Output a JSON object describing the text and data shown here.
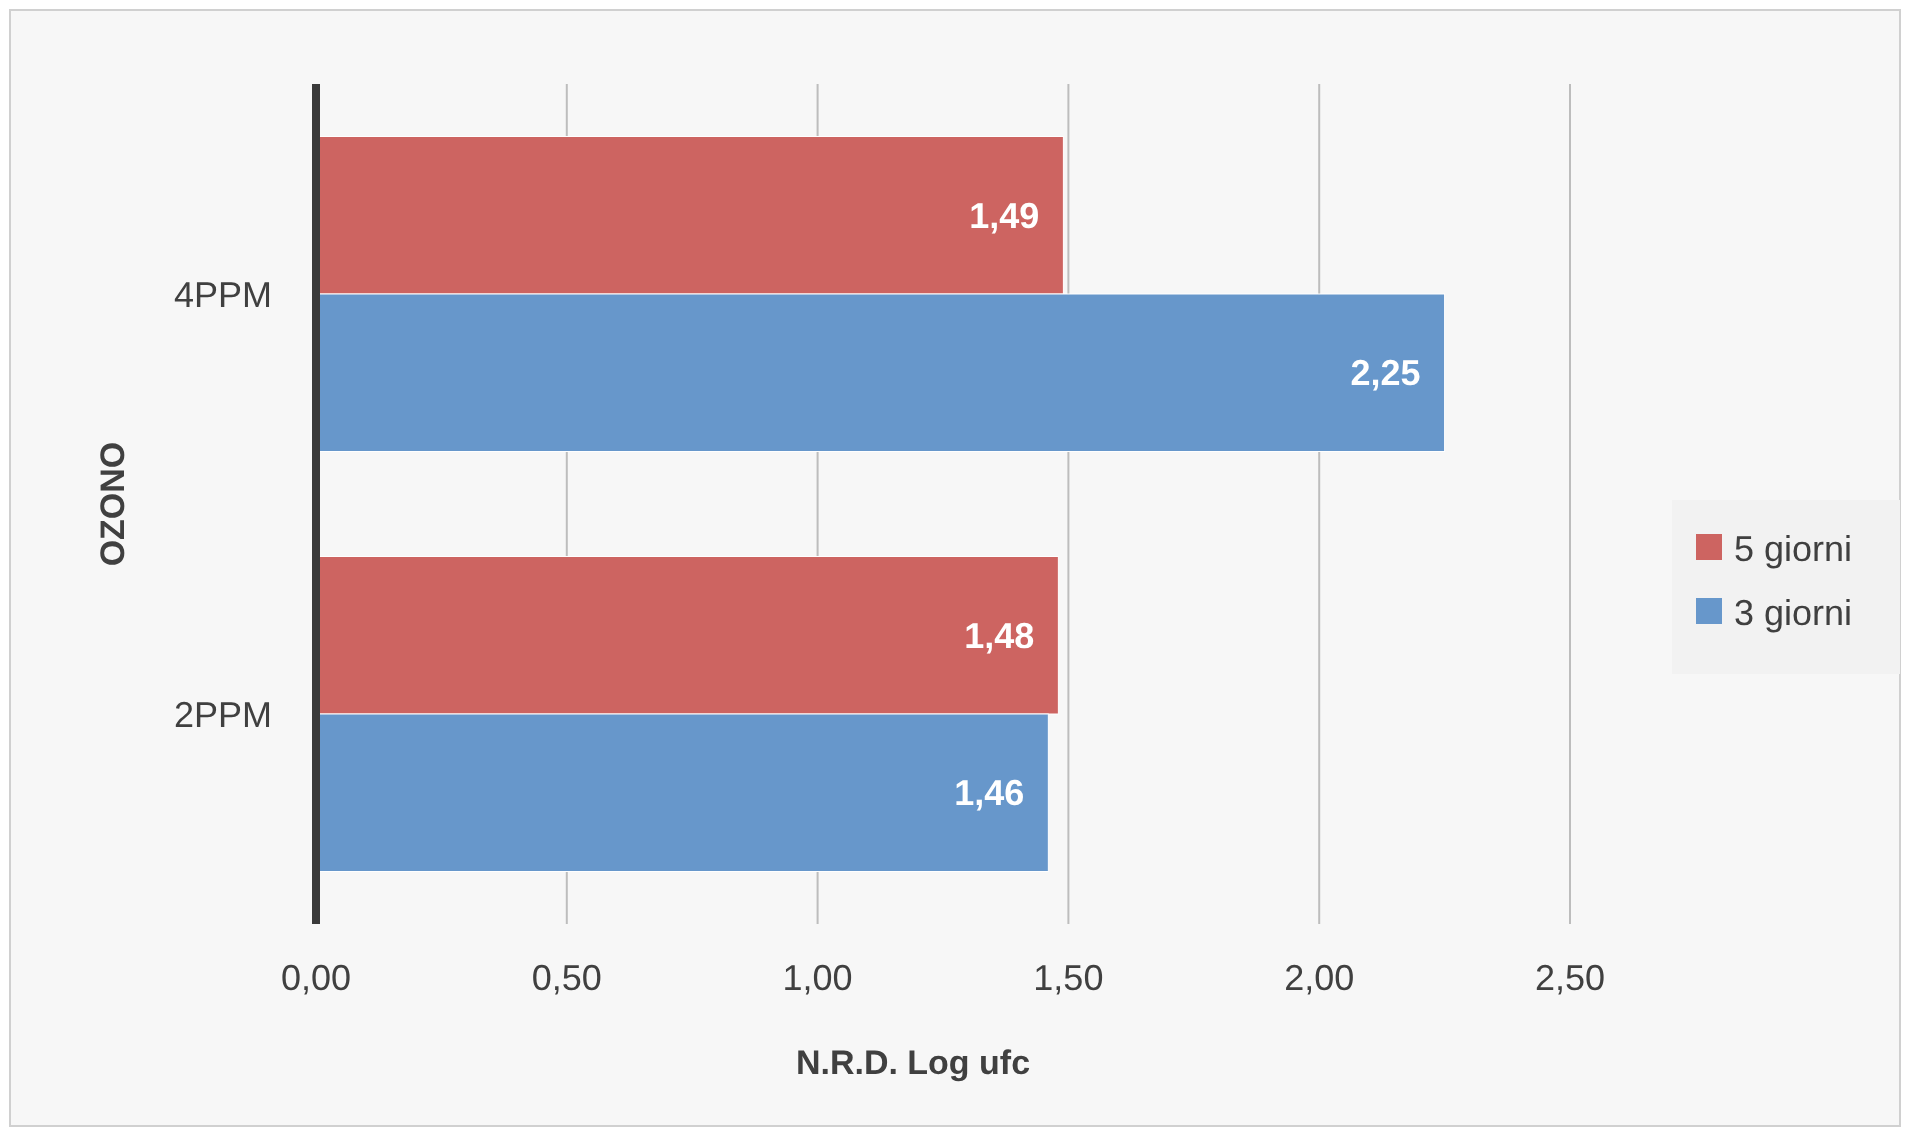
{
  "chart_data": {
    "type": "bar",
    "orientation": "horizontal",
    "ylabel": "OZONO",
    "xlabel": "N.R.D. Log ufc",
    "categories": [
      "4PPM",
      "2PPM"
    ],
    "series": [
      {
        "name": "5 giorni",
        "color": "#cd6461",
        "values": [
          1.49,
          1.48
        ],
        "value_labels": [
          "1,49",
          "1,48"
        ]
      },
      {
        "name": "3 giorni",
        "color": "#6797cb",
        "values": [
          2.25,
          1.46
        ],
        "value_labels": [
          "2,25",
          "1,46"
        ]
      }
    ],
    "xlim": [
      0,
      2.5
    ],
    "xticks": [
      {
        "value": 0,
        "label": "0,00"
      },
      {
        "value": 0.5,
        "label": "0,50"
      },
      {
        "value": 1,
        "label": "1,00"
      },
      {
        "value": 1.5,
        "label": "1,50"
      },
      {
        "value": 2,
        "label": "2,00"
      },
      {
        "value": 2.5,
        "label": "2,50"
      }
    ],
    "grid": "x",
    "legend": "right"
  }
}
